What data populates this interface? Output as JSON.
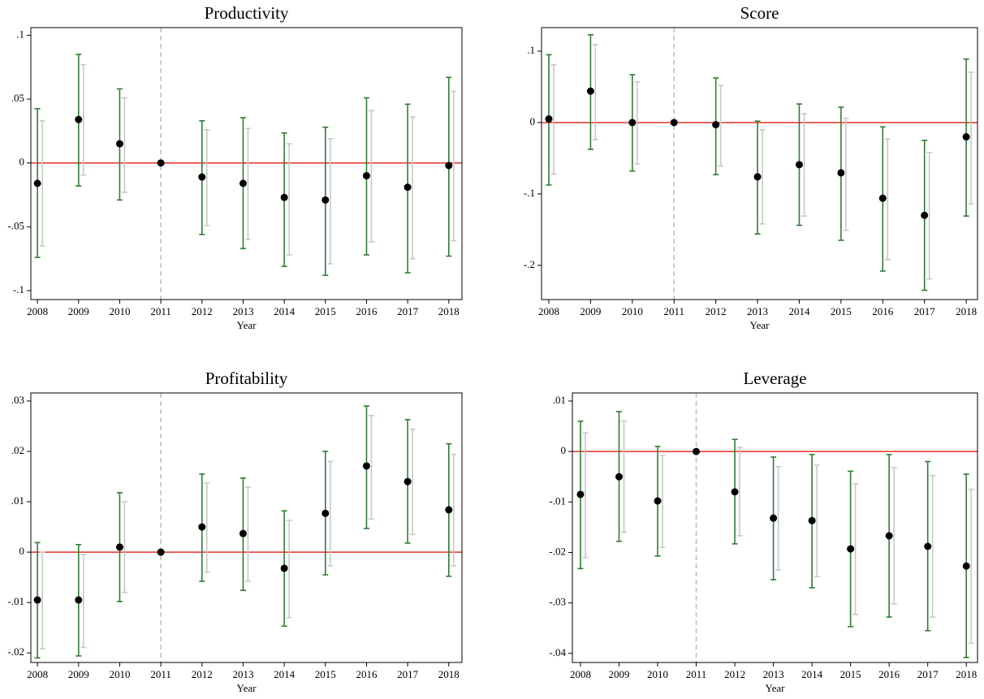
{
  "chart_data": [
    {
      "type": "errorbar",
      "title": "Productivity",
      "x_label": "Year",
      "x": [
        2008,
        2009,
        2010,
        2011,
        2012,
        2013,
        2014,
        2015,
        2016,
        2017,
        2018
      ],
      "values": [
        -0.016,
        0.034,
        0.015,
        0,
        -0.011,
        -0.016,
        -0.027,
        -0.029,
        -0.01,
        -0.019,
        -0.002
      ],
      "ci_low": [
        -0.074,
        -0.018,
        -0.029,
        null,
        -0.056,
        -0.067,
        -0.081,
        -0.088,
        -0.072,
        -0.086,
        -0.073
      ],
      "ci_high": [
        0.0425,
        0.085,
        0.058,
        null,
        0.033,
        0.0355,
        0.0235,
        0.028,
        0.051,
        0.046,
        0.067
      ],
      "ci2_low": [
        -0.065,
        -0.0095,
        -0.023,
        null,
        -0.049,
        -0.06,
        -0.072,
        -0.079,
        -0.062,
        -0.075,
        -0.061
      ],
      "ci2_high": [
        0.033,
        0.077,
        0.051,
        null,
        0.026,
        0.027,
        0.015,
        0.019,
        0.041,
        0.036,
        0.056
      ],
      "color": "#000000",
      "ci_color": "#2e7d32",
      "ci2_color": "#c8c8c8",
      "ref_y": 0,
      "ref_y_color": "#e53027",
      "ref_x": 2011,
      "ref_x_color": "#bdbdbd",
      "xlim": [
        2007.84,
        2018.32
      ],
      "xticks": [
        2008,
        2009,
        2010,
        2011,
        2012,
        2013,
        2014,
        2015,
        2016,
        2017,
        2018
      ],
      "ylim": [
        -0.107,
        0.106
      ],
      "yticks": [
        {
          "value": 0.1,
          "label": ".1"
        },
        {
          "value": 0.05,
          "label": ".05"
        },
        0,
        {
          "value": -0.05,
          "label": "-.05"
        },
        {
          "value": -0.1,
          "label": "-.1"
        }
      ]
    },
    {
      "type": "errorbar",
      "title": "Score",
      "x_label": "Year",
      "x": [
        2008,
        2009,
        2010,
        2011,
        2012,
        2013,
        2014,
        2015,
        2016,
        2017,
        2018
      ],
      "values": [
        0.005,
        0.044,
        0,
        0,
        -0.003,
        -0.076,
        -0.059,
        -0.0705,
        -0.106,
        -0.13,
        -0.02
      ],
      "ci_low": [
        -0.0875,
        -0.0375,
        -0.068,
        null,
        -0.073,
        -0.156,
        -0.144,
        -0.165,
        -0.208,
        -0.235,
        -0.131
      ],
      "ci_high": [
        0.095,
        0.123,
        0.067,
        null,
        0.0625,
        0.002,
        0.026,
        0.0215,
        -0.006,
        -0.025,
        0.089
      ],
      "ci2_low": [
        -0.072,
        -0.024,
        -0.058,
        null,
        -0.061,
        -0.142,
        -0.131,
        -0.151,
        -0.192,
        -0.219,
        -0.114
      ],
      "ci2_high": [
        0.081,
        0.109,
        0.057,
        null,
        0.052,
        -0.01,
        0.0125,
        0.006,
        -0.023,
        -0.042,
        0.0705
      ],
      "color": "#000000",
      "ci_color": "#2e7d32",
      "ci2_color": "#c8c8c8",
      "ref_y": 0,
      "ref_y_color": "#e53027",
      "ref_x": 2011,
      "ref_x_color": "#bdbdbd",
      "xlim": [
        2007.825,
        2018.27
      ],
      "xticks": [
        2008,
        2009,
        2010,
        2011,
        2012,
        2013,
        2014,
        2015,
        2016,
        2017,
        2018
      ],
      "ylim": [
        -0.248,
        0.133
      ],
      "yticks": [
        {
          "value": 0.1,
          "label": ".1"
        },
        0,
        {
          "value": -0.1,
          "label": "-.1"
        },
        {
          "value": -0.2,
          "label": "-.2"
        }
      ]
    },
    {
      "type": "errorbar",
      "title": "Profitability",
      "x_label": "Year",
      "x": [
        2008,
        2009,
        2010,
        2011,
        2012,
        2013,
        2014,
        2015,
        2016,
        2017,
        2018
      ],
      "values": [
        -0.0095,
        -0.0095,
        0.001,
        0,
        0.005,
        0.0037,
        -0.0032,
        0.0077,
        0.0171,
        0.014,
        0.0084
      ],
      "ci_low": [
        -0.021,
        -0.0206,
        -0.0098,
        null,
        -0.0058,
        -0.0076,
        -0.0147,
        -0.0045,
        0.0047,
        0.0018,
        -0.0048
      ],
      "ci_high": [
        0.0019,
        0.0015,
        0.0118,
        null,
        0.0155,
        0.0147,
        0.0082,
        0.02,
        0.029,
        0.0263,
        0.0215
      ],
      "ci2_low": [
        -0.0192,
        -0.0189,
        -0.008,
        null,
        -0.004,
        -0.0058,
        -0.013,
        -0.0027,
        0.0066,
        0.0035,
        -0.0027
      ],
      "ci2_high": [
        0,
        -0.0005,
        0.01,
        null,
        0.0137,
        0.0129,
        0.0063,
        0.018,
        0.0271,
        0.0244,
        0.0194
      ],
      "color": "#000000",
      "ci_color": "#2e7d32",
      "ci2_color": "#c8c8c8",
      "ref_y": 0,
      "ref_y_color": "#e53027",
      "ref_x": 2011,
      "ref_x_color": "#bdbdbd",
      "xlim": [
        2007.84,
        2018.32
      ],
      "xticks": [
        2008,
        2009,
        2010,
        2011,
        2012,
        2013,
        2014,
        2015,
        2016,
        2017,
        2018
      ],
      "ylim": [
        -0.0219,
        0.0316
      ],
      "yticks": [
        {
          "value": 0.03,
          "label": ".03"
        },
        {
          "value": 0.02,
          "label": ".02"
        },
        {
          "value": 0.01,
          "label": ".01"
        },
        0,
        {
          "value": -0.01,
          "label": "-.01"
        },
        {
          "value": -0.02,
          "label": "-.02"
        }
      ]
    },
    {
      "type": "errorbar",
      "title": "Leverage",
      "x_label": "Year",
      "x": [
        2008,
        2009,
        2010,
        2011,
        2012,
        2013,
        2014,
        2015,
        2016,
        2017,
        2018
      ],
      "values": [
        -0.0085,
        -0.005,
        -0.0098,
        0,
        -0.008,
        -0.0132,
        -0.0137,
        -0.0193,
        -0.0167,
        -0.0188,
        -0.0227
      ],
      "ci_low": [
        -0.0232,
        -0.0178,
        -0.0207,
        null,
        -0.0183,
        -0.0254,
        -0.027,
        -0.0347,
        -0.0328,
        -0.0355,
        -0.0408
      ],
      "ci_high": [
        0.006,
        0.0079,
        0.001,
        null,
        0.0024,
        -0.0011,
        -0.0006,
        -0.0039,
        -0.0006,
        -0.002,
        -0.0045
      ],
      "ci2_low": [
        -0.021,
        -0.016,
        -0.019,
        null,
        -0.0167,
        -0.0235,
        -0.0248,
        -0.0323,
        -0.0302,
        -0.0328,
        -0.038
      ],
      "ci2_high": [
        0.0037,
        0.006,
        -0.0008,
        null,
        0.0008,
        -0.003,
        -0.0027,
        -0.0064,
        -0.0032,
        -0.0048,
        -0.0075
      ],
      "color": "#000000",
      "ci_color": "#2e7d32",
      "ci2_color": "#c8c8c8",
      "ref_y": 0,
      "ref_y_color": "#e53027",
      "ref_x": 2011,
      "ref_x_color": "#bdbdbd",
      "xlim": [
        2007.79,
        2018.29
      ],
      "xticks": [
        2008,
        2009,
        2010,
        2011,
        2012,
        2013,
        2014,
        2015,
        2016,
        2017,
        2018
      ],
      "ylim": [
        -0.0418,
        0.0116
      ],
      "yticks": [
        {
          "value": 0.01,
          "label": ".01"
        },
        0,
        {
          "value": -0.01,
          "label": "-.01"
        },
        {
          "value": -0.02,
          "label": "-.02"
        },
        {
          "value": -0.03,
          "label": "-.03"
        },
        {
          "value": -0.04,
          "label": "-.04"
        }
      ]
    }
  ]
}
